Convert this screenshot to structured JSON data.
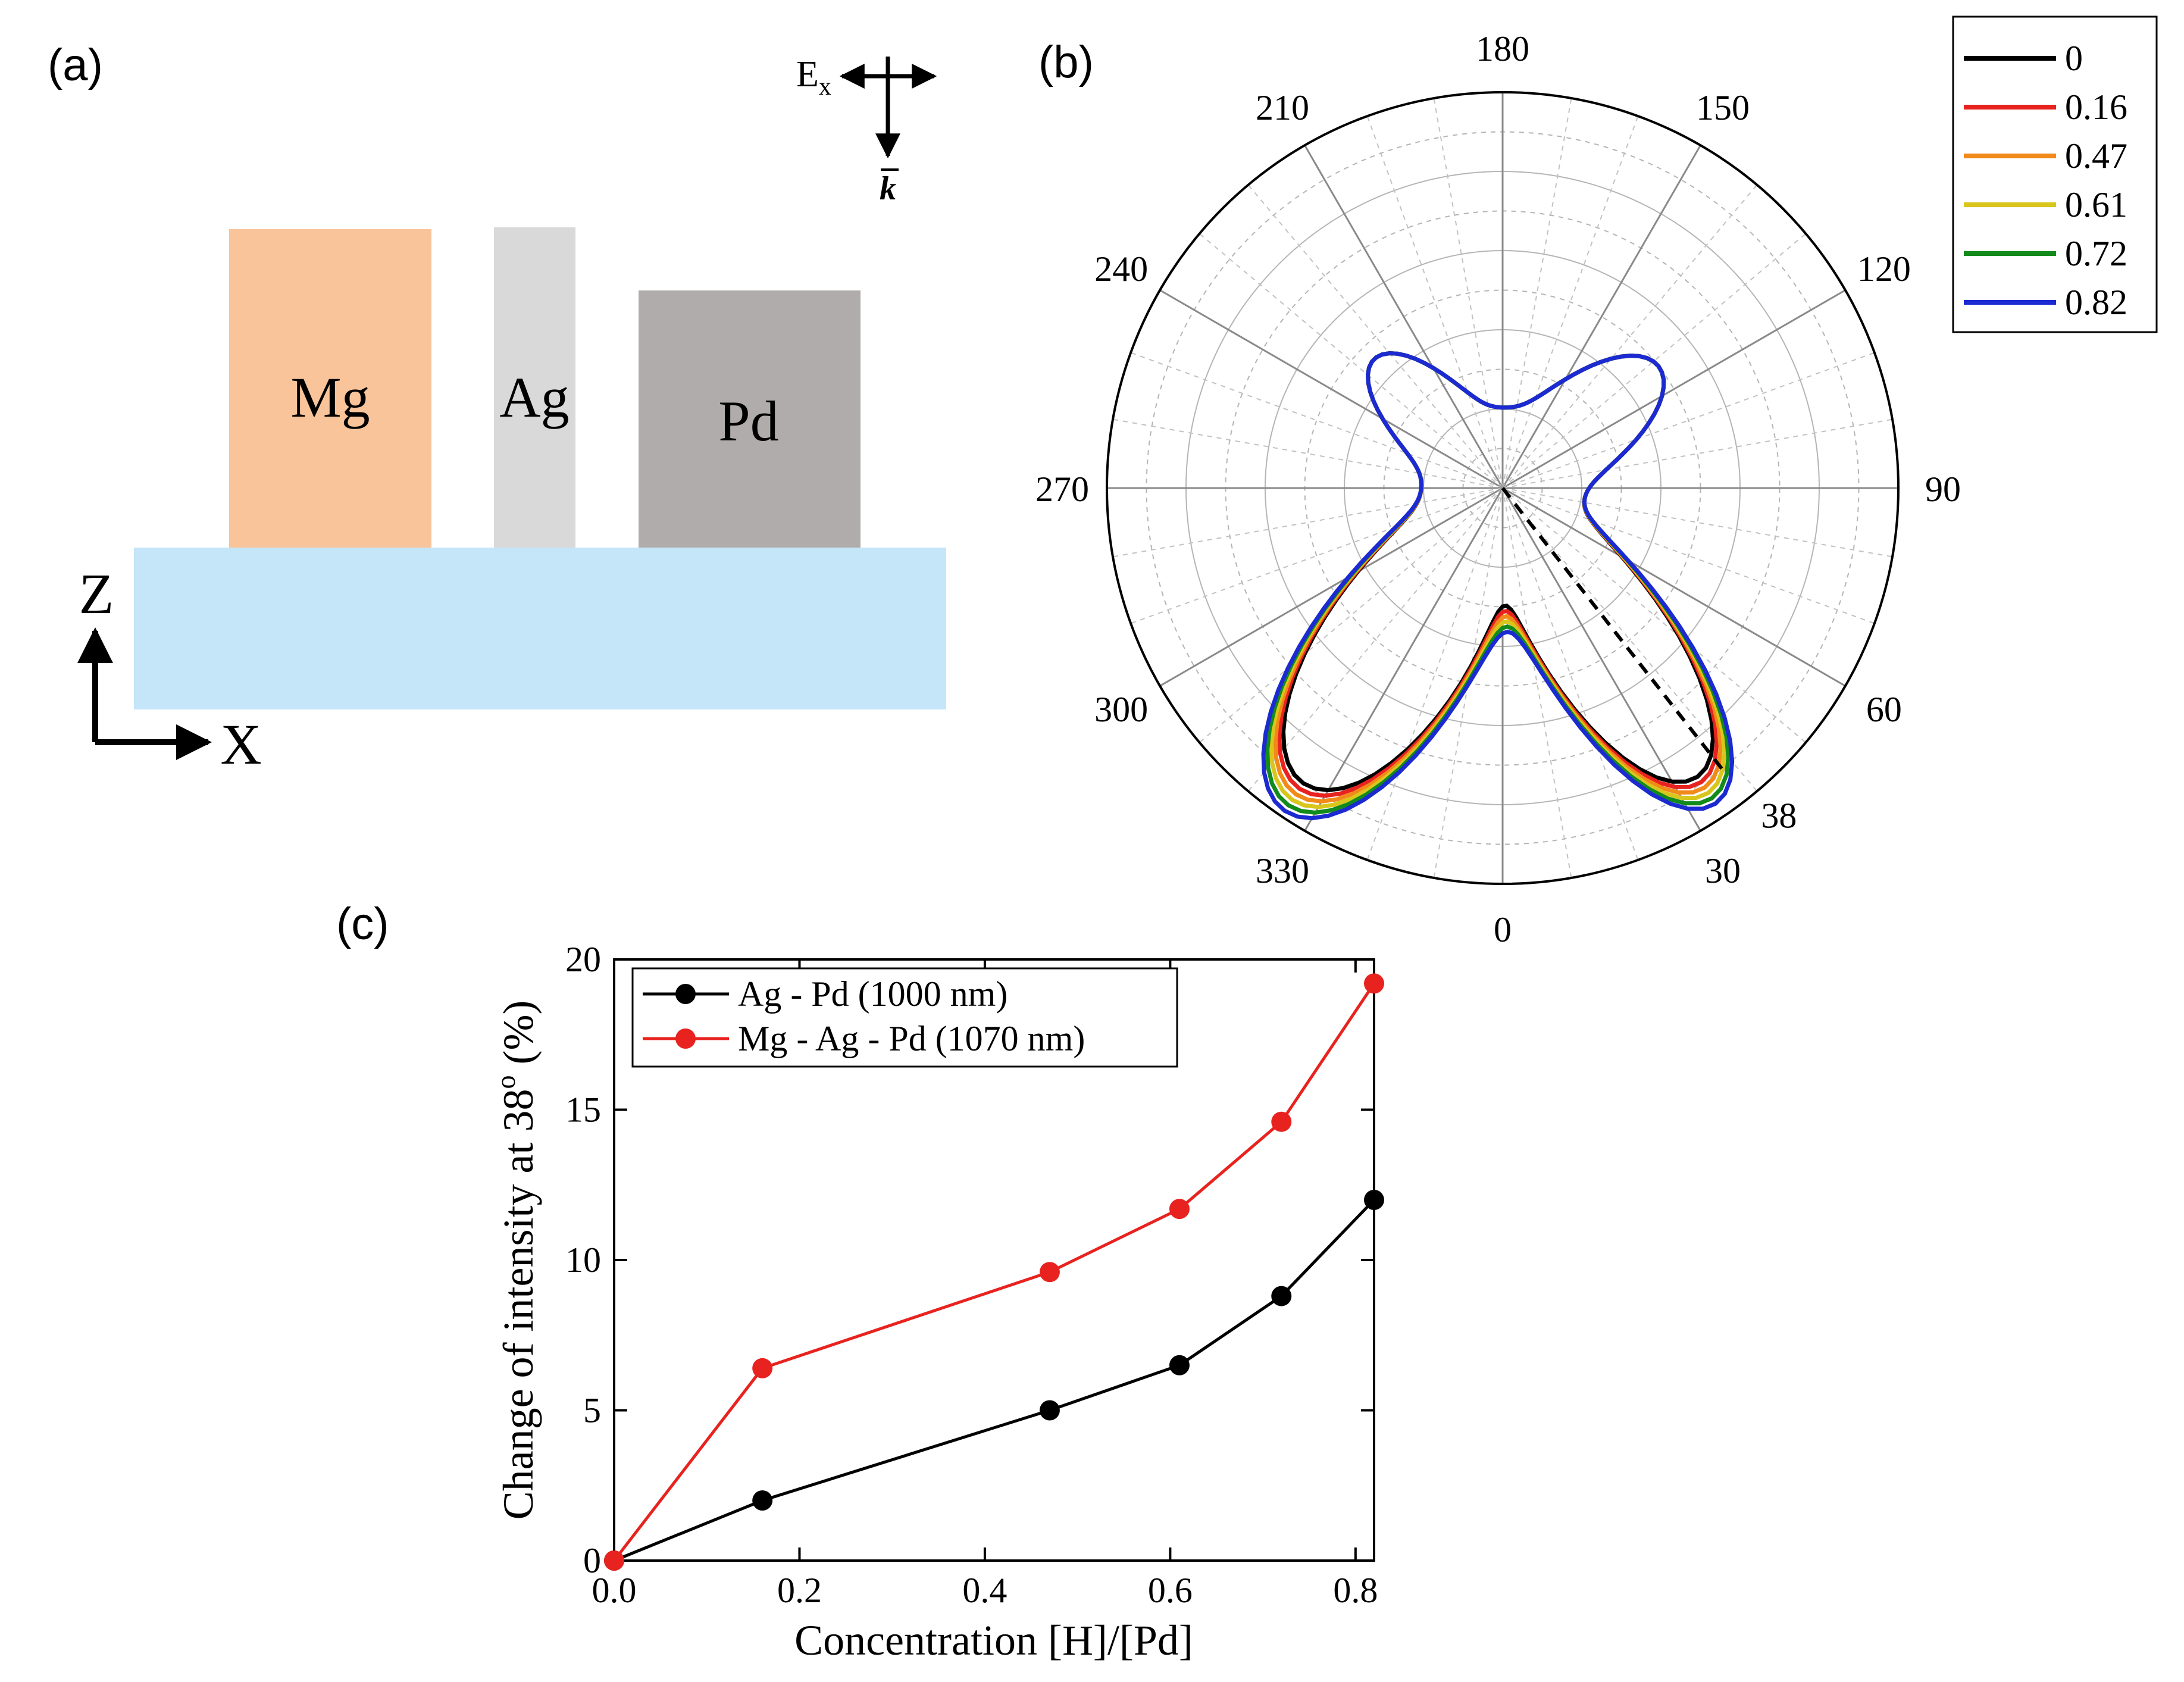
{
  "panels": {
    "a": "(a)",
    "b": "(b)",
    "c": "(c)"
  },
  "panel_a": {
    "materials": [
      {
        "label": "Mg",
        "color": "#f9c49a"
      },
      {
        "label": "Ag",
        "color": "#d9d9d9"
      },
      {
        "label": "Pd",
        "color": "#b0acac"
      }
    ],
    "substrate_color": "#c5e6f8",
    "axis_z": "Z",
    "axis_x": "X",
    "field_label": "E",
    "field_sub": "x",
    "wave_label": "k"
  },
  "chart_data": [
    {
      "type": "polar",
      "angle_labels": [
        "180",
        "150",
        "120",
        "90",
        "60",
        "30",
        "0",
        "330",
        "300",
        "270",
        "240",
        "210"
      ],
      "marker_angle_label": "38",
      "legend": [
        {
          "label": "0",
          "color": "#000000"
        },
        {
          "label": "0.16",
          "color": "#e8231f"
        },
        {
          "label": "0.47",
          "color": "#f28a1a"
        },
        {
          "label": "0.61",
          "color": "#d9c61c"
        },
        {
          "label": "0.72",
          "color": "#138a1c"
        },
        {
          "label": "0.82",
          "color": "#1b2ad1"
        }
      ]
    },
    {
      "type": "line",
      "title": "",
      "xlabel": "Concentration [H]/[Pd]",
      "ylabel_main": "Change of intensity at 38",
      "ylabel_sup": "o",
      "ylabel_unit": " (%)",
      "xlim": [
        0.0,
        0.82
      ],
      "ylim": [
        0,
        20
      ],
      "xticks": [
        "0.0",
        "0.2",
        "0.4",
        "0.6",
        "0.8"
      ],
      "yticks": [
        "0",
        "5",
        "10",
        "15",
        "20"
      ],
      "x": [
        0.0,
        0.16,
        0.47,
        0.61,
        0.72,
        0.82
      ],
      "series": [
        {
          "name": "Ag - Pd (1000 nm)",
          "color": "#000000",
          "values": [
            0.0,
            2.0,
            5.0,
            6.5,
            8.8,
            12.0
          ]
        },
        {
          "name": "Mg - Ag - Pd (1070 nm)",
          "color": "#e8231f",
          "values": [
            0.0,
            6.4,
            9.6,
            11.7,
            14.6,
            19.2
          ]
        }
      ]
    }
  ]
}
